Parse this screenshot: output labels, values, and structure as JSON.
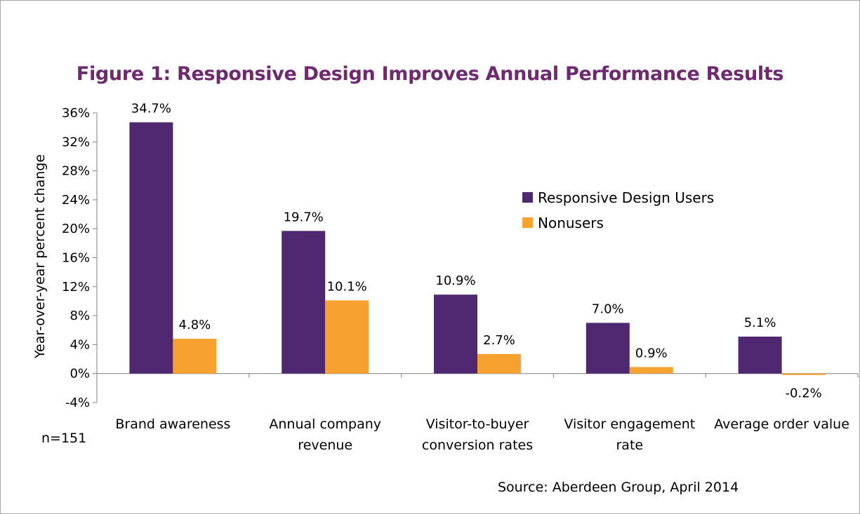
{
  "chart_data": {
    "type": "bar",
    "title": "Figure 1: Responsive Design Improves Annual Performance Results",
    "ylabel": "Year-over-year percent change",
    "xlabel": "",
    "ylim": [
      -4,
      36
    ],
    "yticks": [
      36,
      32,
      28,
      24,
      20,
      16,
      12,
      8,
      4,
      0,
      -4
    ],
    "ytick_labels": [
      "36%",
      "32%",
      "28%",
      "24%",
      "20%",
      "16%",
      "12%",
      "8%",
      "4%",
      "0%",
      "-4%"
    ],
    "categories": [
      [
        "Brand awareness"
      ],
      [
        "Annual company",
        "revenue"
      ],
      [
        "Visitor-to-buyer",
        "conversion rates"
      ],
      [
        "Visitor engagement",
        "rate"
      ],
      [
        "Average order value"
      ]
    ],
    "series": [
      {
        "name": "Responsive Design Users",
        "color": "#4f2872",
        "values": [
          34.7,
          19.7,
          10.9,
          7.0,
          5.1
        ],
        "labels": [
          "34.7%",
          "19.7%",
          "10.9%",
          "7.0%",
          "5.1%"
        ]
      },
      {
        "name": "Nonusers",
        "color": "#f7a131",
        "values": [
          4.8,
          10.1,
          2.7,
          0.9,
          -0.2
        ],
        "labels": [
          "4.8%",
          "10.1%",
          "2.7%",
          "0.9%",
          "-0.2%"
        ]
      }
    ],
    "legend_position": "right",
    "grid": false
  },
  "footnote": "n=151",
  "source": "Source: Aberdeen Group, April 2014"
}
